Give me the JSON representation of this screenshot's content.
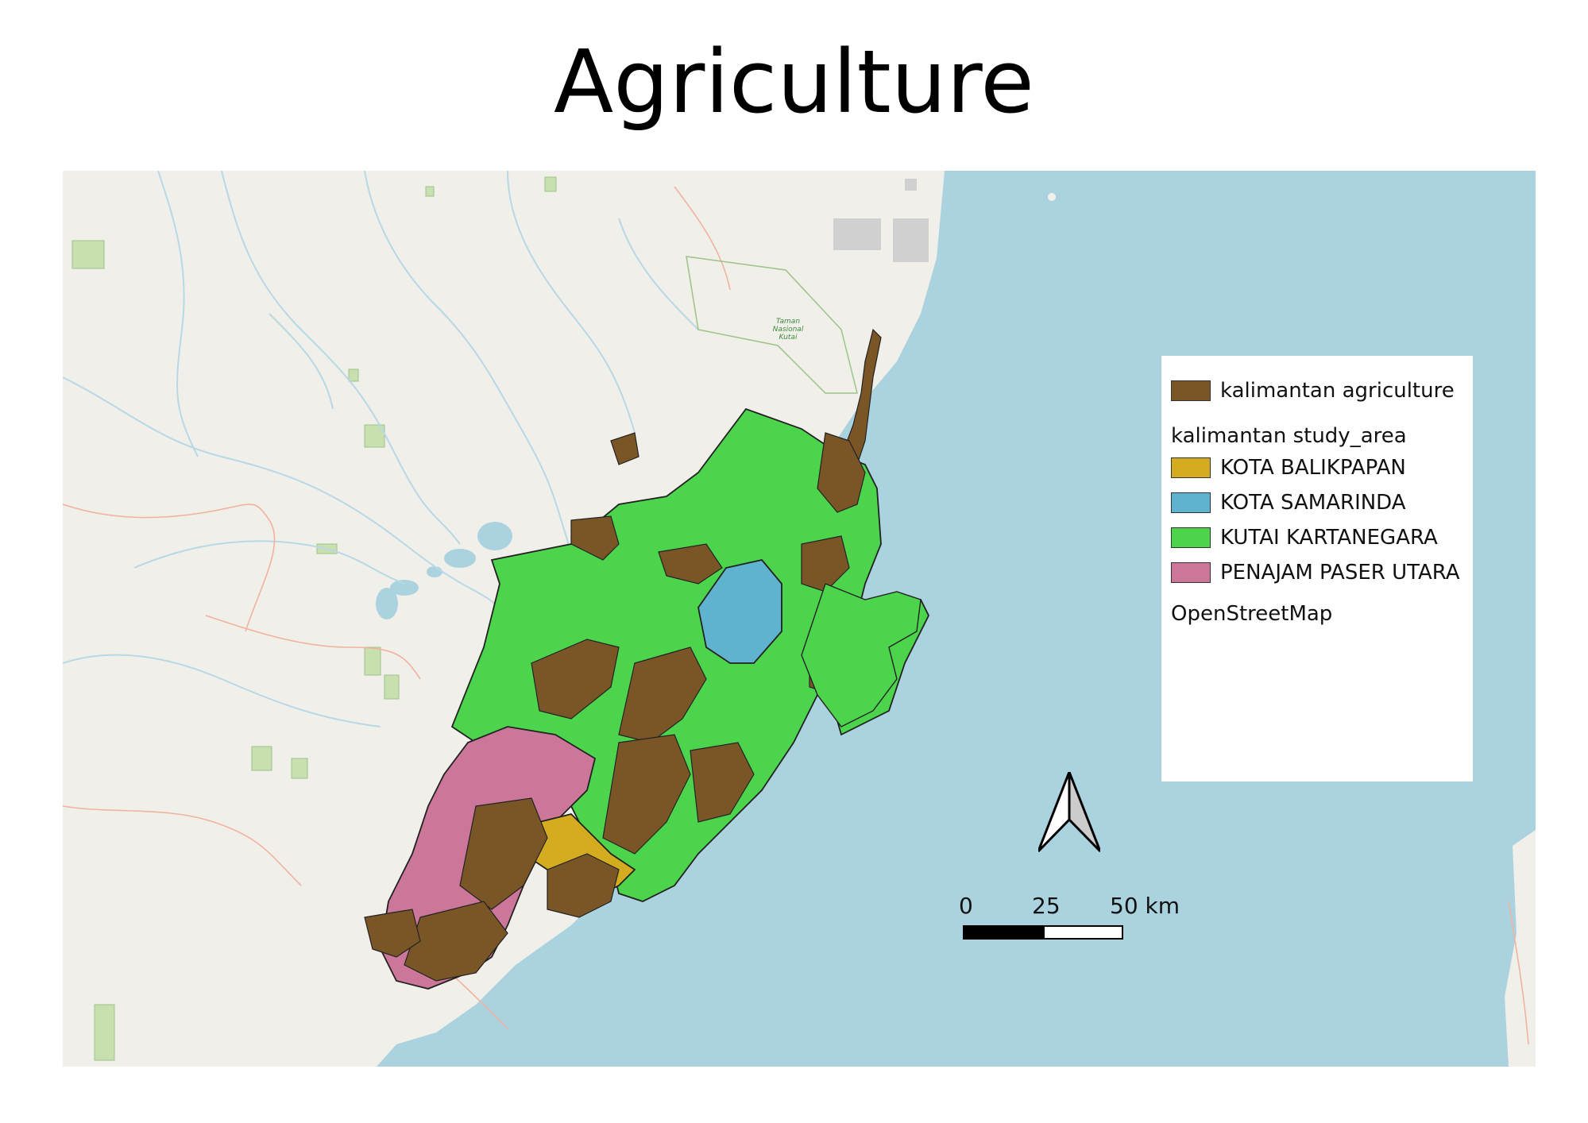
{
  "title": "Agriculture",
  "legend": {
    "layer1_label": "kalimantan agriculture",
    "layer1_color": "#7a5626",
    "group_heading": "kalimantan study_area",
    "items": [
      {
        "label": "KOTA BALIKPAPAN",
        "color": "#d4ac1f"
      },
      {
        "label": "KOTA SAMARINDA",
        "color": "#5fb3cf"
      },
      {
        "label": "KUTAI KARTANEGARA",
        "color": "#4cd44c"
      },
      {
        "label": "PENAJAM PASER UTARA",
        "color": "#cc7799"
      }
    ],
    "basemap_label": "OpenStreetMap"
  },
  "scale_bar": {
    "tick0": "0",
    "tick1": "25",
    "tick2": "50 km"
  },
  "map_labels": {
    "park": "Taman\nNasional\nKutai"
  },
  "colors": {
    "land": "#f1efe9",
    "sea": "#aad3df",
    "park": "#c8dfb0"
  }
}
